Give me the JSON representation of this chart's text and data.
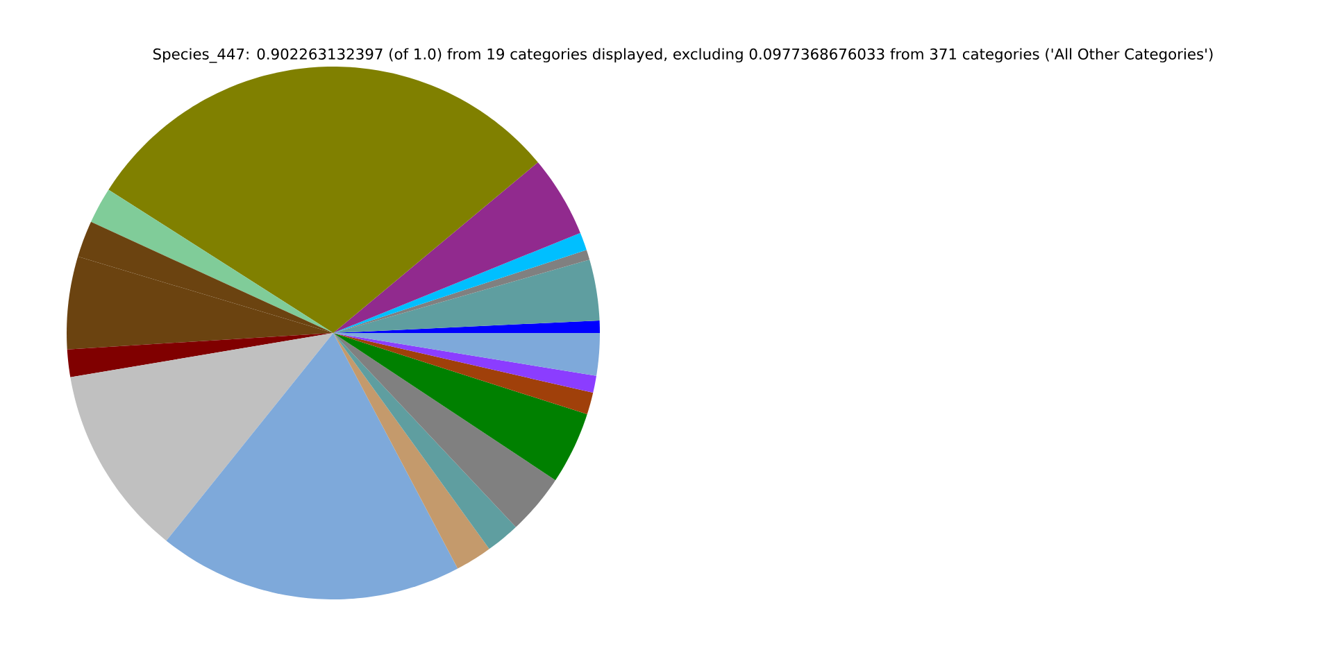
{
  "chart_data": {
    "type": "pie",
    "title": "Species_447: 0.902263132397 (of 1.0) from 19 categories displayed, excluding 0.0977368676033 from 371 categories ('All Other Categories')",
    "categories": [
      null,
      null,
      null,
      null,
      null,
      null,
      null,
      null,
      null,
      null,
      null,
      null,
      null,
      null,
      null,
      null,
      null,
      null,
      null
    ],
    "values": [
      0.75,
      3.69,
      0.61,
      1.08,
      4.94,
      29.89,
      2.19,
      2.22,
      5.61,
      1.67,
      11.58,
      18.5,
      2.22,
      2.06,
      3.67,
      4.39,
      1.33,
      1.03,
      2.57
    ],
    "colors": [
      "#0000ff",
      "#5f9ea0",
      "#808080",
      "#00bfff",
      "#912a8e",
      "#808000",
      "#80cc99",
      "#6b4310",
      "#6b4310",
      "#800000",
      "#c0c0c0",
      "#7ea9da",
      "#c49a6c",
      "#5f9ea0",
      "#808080",
      "#008000",
      "#a0400a",
      "#8b3dff",
      "#7ea9da"
    ]
  }
}
